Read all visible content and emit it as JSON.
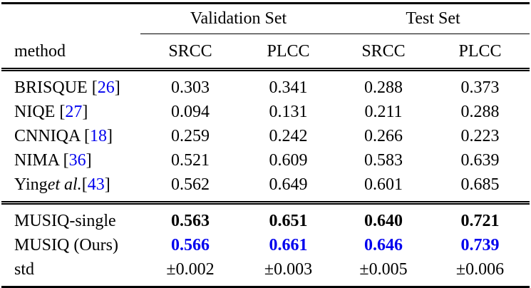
{
  "colors": {
    "text": "#000000",
    "link_blue": "#0000EE",
    "highlight_blue": "#0000EE"
  },
  "table": {
    "group_headers": [
      {
        "label": "Validation Set",
        "span": 2
      },
      {
        "label": "Test Set",
        "span": 2
      }
    ],
    "method_header": "method",
    "sub_headers": [
      "SRCC",
      "PLCC",
      "SRCC",
      "PLCC"
    ],
    "rows_baseline": [
      {
        "method": "BRISQUE ",
        "cite": "26",
        "values": [
          "0.303",
          "0.341",
          "0.288",
          "0.373"
        ],
        "style": "normal"
      },
      {
        "method": "NIQE ",
        "cite": "27",
        "values": [
          "0.094",
          "0.131",
          "0.211",
          "0.288"
        ],
        "style": "normal"
      },
      {
        "method": "CNNIQA ",
        "cite": "18",
        "values": [
          "0.259",
          "0.242",
          "0.266",
          "0.223"
        ],
        "style": "normal"
      },
      {
        "method": "NIMA ",
        "cite": "36",
        "values": [
          "0.521",
          "0.609",
          "0.583",
          "0.639"
        ],
        "style": "normal"
      },
      {
        "method": "Ying ",
        "method_italic": "et al.",
        "method_after": " ",
        "cite": "43",
        "values": [
          "0.562",
          "0.649",
          "0.601",
          "0.685"
        ],
        "style": "normal"
      }
    ],
    "rows_ours": [
      {
        "method": "MUSIQ-single",
        "values": [
          "0.563",
          "0.651",
          "0.640",
          "0.721"
        ],
        "style": "bold"
      },
      {
        "method": "MUSIQ (Ours)",
        "values": [
          "0.566",
          "0.661",
          "0.646",
          "0.739"
        ],
        "style": "bold-blue"
      },
      {
        "method": "std",
        "values": [
          "±0.002",
          "±0.003",
          "±0.005",
          "±0.006"
        ],
        "style": "normal"
      }
    ]
  }
}
